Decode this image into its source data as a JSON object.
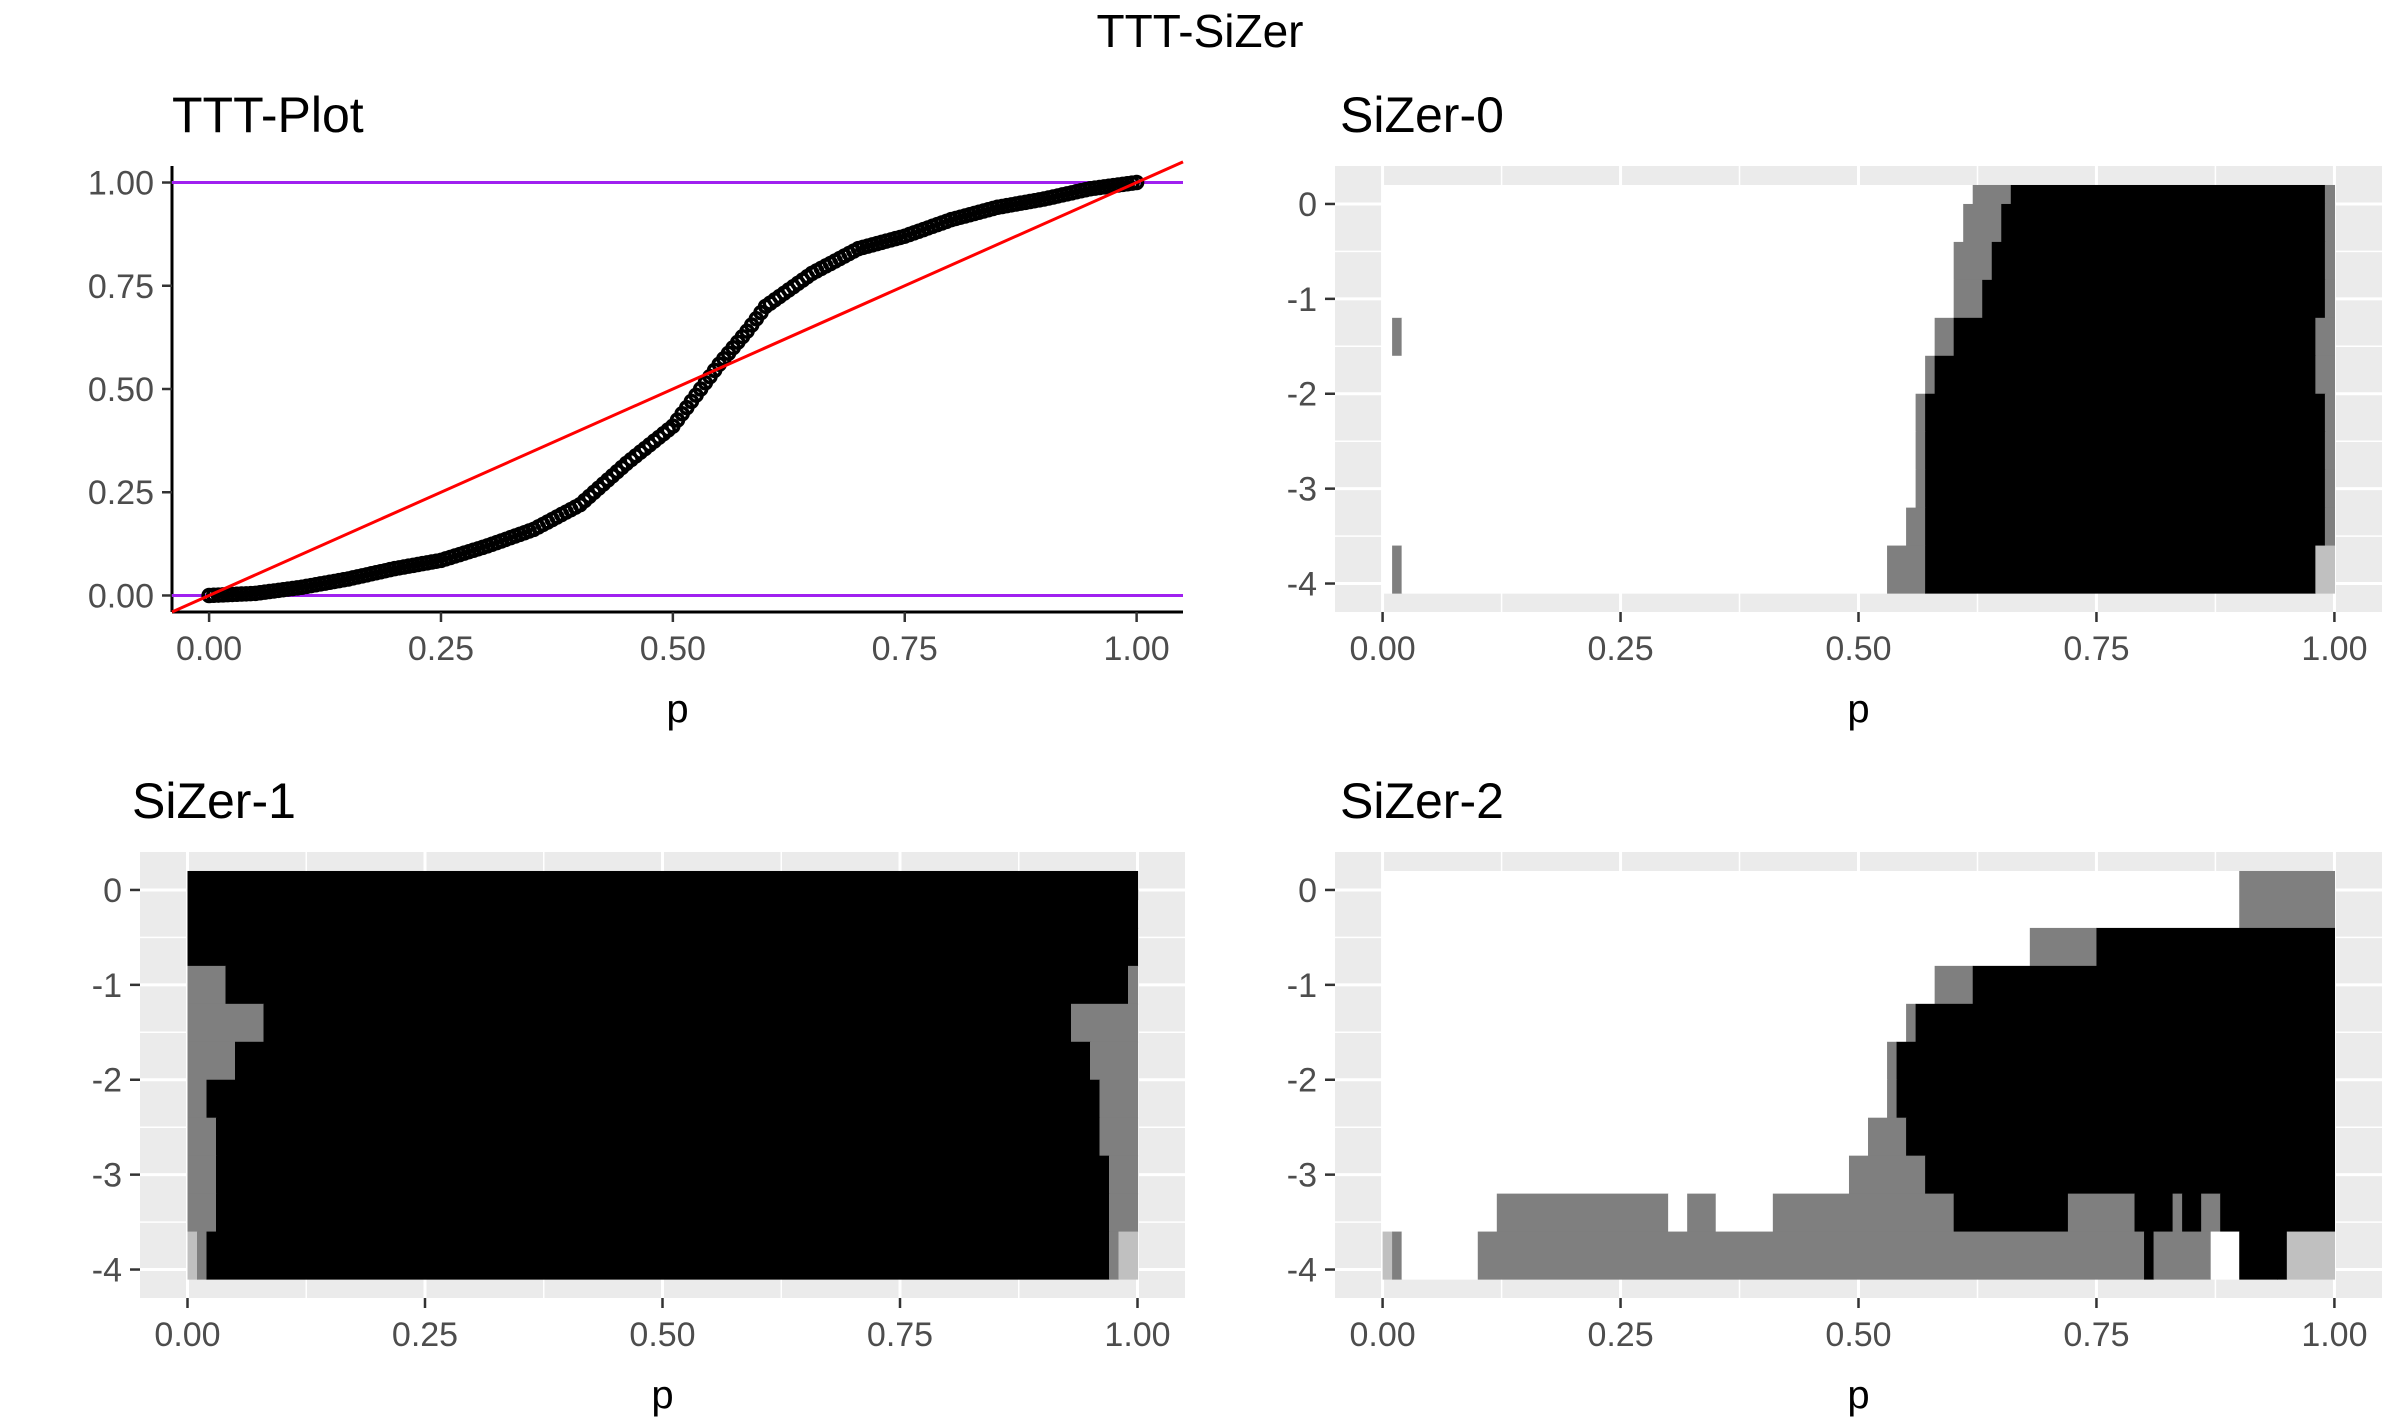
{
  "figure_title": "TTT-SiZer",
  "colors": {
    "panel_bg": "#ebebeb",
    "grid": "#ffffff",
    "ttt_points": "#000000",
    "ttt_diagonal": "#ff0000",
    "ttt_bounds": "#a020f0",
    "sizer_black": "#000000",
    "sizer_dark_gray": "#7f7f7f",
    "sizer_light_gray": "#c0c0c0",
    "sizer_white": "#ffffff"
  },
  "chart_data": [
    {
      "id": "ttt",
      "type": "scatter",
      "title": "TTT-Plot",
      "xlabel": "p",
      "ylabel": "",
      "xlim": [
        -0.04,
        1.05
      ],
      "ylim": [
        -0.04,
        1.04
      ],
      "xticks": [
        "0.00",
        "0.25",
        "0.50",
        "0.75",
        "1.00"
      ],
      "yticks": [
        "0.00",
        "0.25",
        "0.50",
        "0.75",
        "1.00"
      ],
      "grid": false,
      "curve_anchors": {
        "x": [
          0.0,
          0.05,
          0.1,
          0.15,
          0.2,
          0.25,
          0.3,
          0.35,
          0.4,
          0.43,
          0.45,
          0.5,
          0.53,
          0.55,
          0.58,
          0.6,
          0.65,
          0.7,
          0.75,
          0.8,
          0.85,
          0.9,
          0.95,
          1.0
        ],
        "y": [
          0.0,
          0.005,
          0.02,
          0.04,
          0.065,
          0.085,
          0.12,
          0.16,
          0.22,
          0.28,
          0.32,
          0.41,
          0.5,
          0.56,
          0.64,
          0.7,
          0.78,
          0.84,
          0.87,
          0.91,
          0.94,
          0.96,
          0.985,
          1.0
        ]
      },
      "lines": [
        {
          "name": "diagonal",
          "kind": "diagonal"
        },
        {
          "name": "upper",
          "kind": "hline",
          "y": 1.0
        },
        {
          "name": "lower",
          "kind": "hline",
          "y": 0.0
        }
      ]
    },
    {
      "id": "sizer0",
      "type": "heatmap",
      "title": "SiZer-0",
      "xlabel": "p",
      "ylabel": "",
      "xlim": [
        -0.05,
        1.05
      ],
      "ylim": [
        -4.3,
        0.4
      ],
      "xticks": [
        "0.00",
        "0.25",
        "0.50",
        "0.75",
        "1.00"
      ],
      "yticks": [
        "0",
        "-1",
        "-2",
        "-3",
        "-4"
      ],
      "grid": true,
      "rows_top_to_bottom": [
        {
          "y": 0.1,
          "segments": [
            [
              0.0,
              0.62,
              "W"
            ],
            [
              0.62,
              0.66,
              "G"
            ],
            [
              0.66,
              0.99,
              "B"
            ],
            [
              0.99,
              1.0,
              "G"
            ]
          ]
        },
        {
          "y": -0.2,
          "segments": [
            [
              0.0,
              0.61,
              "W"
            ],
            [
              0.61,
              0.65,
              "G"
            ],
            [
              0.65,
              0.99,
              "B"
            ],
            [
              0.99,
              1.0,
              "G"
            ]
          ]
        },
        {
          "y": -0.6,
          "segments": [
            [
              0.0,
              0.6,
              "W"
            ],
            [
              0.6,
              0.64,
              "G"
            ],
            [
              0.64,
              0.99,
              "B"
            ],
            [
              0.99,
              1.0,
              "G"
            ]
          ]
        },
        {
          "y": -1.0,
          "segments": [
            [
              0.0,
              0.6,
              "W"
            ],
            [
              0.6,
              0.63,
              "G"
            ],
            [
              0.63,
              0.99,
              "B"
            ],
            [
              0.99,
              1.0,
              "G"
            ]
          ]
        },
        {
          "y": -1.4,
          "segments": [
            [
              0.0,
              0.01,
              "W"
            ],
            [
              0.01,
              0.02,
              "G"
            ],
            [
              0.02,
              0.58,
              "W"
            ],
            [
              0.58,
              0.6,
              "G"
            ],
            [
              0.6,
              0.98,
              "B"
            ],
            [
              0.98,
              1.0,
              "G"
            ]
          ]
        },
        {
          "y": -1.8,
          "segments": [
            [
              0.0,
              0.57,
              "W"
            ],
            [
              0.57,
              0.58,
              "G"
            ],
            [
              0.58,
              0.98,
              "B"
            ],
            [
              0.98,
              1.0,
              "G"
            ]
          ]
        },
        {
          "y": -2.2,
          "segments": [
            [
              0.0,
              0.56,
              "W"
            ],
            [
              0.56,
              0.57,
              "G"
            ],
            [
              0.57,
              0.99,
              "B"
            ],
            [
              0.99,
              1.0,
              "G"
            ]
          ]
        },
        {
          "y": -2.6,
          "segments": [
            [
              0.0,
              0.56,
              "W"
            ],
            [
              0.56,
              0.57,
              "G"
            ],
            [
              0.57,
              0.99,
              "B"
            ],
            [
              0.99,
              1.0,
              "G"
            ]
          ]
        },
        {
          "y": -3.0,
          "segments": [
            [
              0.0,
              0.56,
              "W"
            ],
            [
              0.56,
              0.57,
              "G"
            ],
            [
              0.57,
              0.99,
              "B"
            ],
            [
              0.99,
              1.0,
              "G"
            ]
          ]
        },
        {
          "y": -3.4,
          "segments": [
            [
              0.0,
              0.55,
              "W"
            ],
            [
              0.55,
              0.57,
              "G"
            ],
            [
              0.57,
              0.99,
              "B"
            ],
            [
              0.99,
              1.0,
              "G"
            ]
          ]
        },
        {
          "y": -3.8,
          "segments": [
            [
              0.0,
              0.01,
              "W"
            ],
            [
              0.01,
              0.02,
              "G"
            ],
            [
              0.02,
              0.53,
              "W"
            ],
            [
              0.53,
              0.57,
              "G"
            ],
            [
              0.57,
              0.98,
              "B"
            ],
            [
              0.98,
              1.0,
              "L"
            ]
          ]
        }
      ]
    },
    {
      "id": "sizer1",
      "type": "heatmap",
      "title": "SiZer-1",
      "xlabel": "p",
      "ylabel": "",
      "xlim": [
        -0.05,
        1.05
      ],
      "ylim": [
        -4.3,
        0.4
      ],
      "xticks": [
        "0.00",
        "0.25",
        "0.50",
        "0.75",
        "1.00"
      ],
      "yticks": [
        "0",
        "-1",
        "-2",
        "-3",
        "-4"
      ],
      "grid": true,
      "rows_top_to_bottom": [
        {
          "y": 0.1,
          "segments": [
            [
              0.0,
              1.0,
              "B"
            ]
          ]
        },
        {
          "y": -0.2,
          "segments": [
            [
              0.0,
              1.0,
              "B"
            ]
          ]
        },
        {
          "y": -0.6,
          "segments": [
            [
              0.0,
              1.0,
              "B"
            ]
          ]
        },
        {
          "y": -1.0,
          "segments": [
            [
              0.0,
              0.04,
              "G"
            ],
            [
              0.04,
              0.99,
              "B"
            ],
            [
              0.99,
              1.0,
              "G"
            ]
          ]
        },
        {
          "y": -1.4,
          "segments": [
            [
              0.0,
              0.08,
              "G"
            ],
            [
              0.08,
              0.93,
              "B"
            ],
            [
              0.93,
              1.0,
              "G"
            ]
          ]
        },
        {
          "y": -1.8,
          "segments": [
            [
              0.0,
              0.05,
              "G"
            ],
            [
              0.05,
              0.95,
              "B"
            ],
            [
              0.95,
              1.0,
              "G"
            ]
          ]
        },
        {
          "y": -2.2,
          "segments": [
            [
              0.0,
              0.02,
              "G"
            ],
            [
              0.02,
              0.96,
              "B"
            ],
            [
              0.96,
              1.0,
              "G"
            ]
          ]
        },
        {
          "y": -2.6,
          "segments": [
            [
              0.0,
              0.03,
              "G"
            ],
            [
              0.03,
              0.96,
              "B"
            ],
            [
              0.96,
              1.0,
              "G"
            ]
          ]
        },
        {
          "y": -3.0,
          "segments": [
            [
              0.0,
              0.03,
              "G"
            ],
            [
              0.03,
              0.97,
              "B"
            ],
            [
              0.97,
              1.0,
              "G"
            ]
          ]
        },
        {
          "y": -3.4,
          "segments": [
            [
              0.0,
              0.03,
              "G"
            ],
            [
              0.03,
              0.97,
              "B"
            ],
            [
              0.97,
              1.0,
              "G"
            ]
          ]
        },
        {
          "y": -3.8,
          "segments": [
            [
              0.0,
              0.01,
              "L"
            ],
            [
              0.01,
              0.02,
              "G"
            ],
            [
              0.02,
              0.97,
              "B"
            ],
            [
              0.97,
              0.98,
              "G"
            ],
            [
              0.98,
              1.0,
              "L"
            ]
          ]
        }
      ]
    },
    {
      "id": "sizer2",
      "type": "heatmap",
      "title": "SiZer-2",
      "xlabel": "p",
      "ylabel": "",
      "xlim": [
        -0.05,
        1.05
      ],
      "ylim": [
        -4.3,
        0.4
      ],
      "xticks": [
        "0.00",
        "0.25",
        "0.50",
        "0.75",
        "1.00"
      ],
      "yticks": [
        "0",
        "-1",
        "-2",
        "-3",
        "-4"
      ],
      "grid": true,
      "rows_top_to_bottom": [
        {
          "y": 0.1,
          "segments": [
            [
              0.0,
              0.9,
              "W"
            ],
            [
              0.9,
              1.0,
              "G"
            ]
          ]
        },
        {
          "y": -0.2,
          "segments": [
            [
              0.0,
              0.9,
              "W"
            ],
            [
              0.9,
              1.0,
              "G"
            ]
          ]
        },
        {
          "y": -0.6,
          "segments": [
            [
              0.0,
              0.68,
              "W"
            ],
            [
              0.68,
              0.75,
              "G"
            ],
            [
              0.75,
              1.0,
              "B"
            ]
          ]
        },
        {
          "y": -1.0,
          "segments": [
            [
              0.0,
              0.58,
              "W"
            ],
            [
              0.58,
              0.62,
              "G"
            ],
            [
              0.62,
              1.0,
              "B"
            ]
          ]
        },
        {
          "y": -1.4,
          "segments": [
            [
              0.0,
              0.55,
              "W"
            ],
            [
              0.55,
              0.56,
              "G"
            ],
            [
              0.56,
              1.0,
              "B"
            ]
          ]
        },
        {
          "y": -1.8,
          "segments": [
            [
              0.0,
              0.53,
              "W"
            ],
            [
              0.53,
              0.54,
              "G"
            ],
            [
              0.54,
              1.0,
              "B"
            ]
          ]
        },
        {
          "y": -2.2,
          "segments": [
            [
              0.0,
              0.53,
              "W"
            ],
            [
              0.53,
              0.54,
              "G"
            ],
            [
              0.54,
              1.0,
              "B"
            ]
          ]
        },
        {
          "y": -2.6,
          "segments": [
            [
              0.0,
              0.51,
              "W"
            ],
            [
              0.51,
              0.55,
              "G"
            ],
            [
              0.55,
              1.0,
              "B"
            ]
          ]
        },
        {
          "y": -3.0,
          "segments": [
            [
              0.0,
              0.49,
              "W"
            ],
            [
              0.49,
              0.57,
              "G"
            ],
            [
              0.57,
              1.0,
              "B"
            ]
          ]
        },
        {
          "y": -3.4,
          "segments": [
            [
              0.0,
              0.12,
              "W"
            ],
            [
              0.12,
              0.3,
              "G"
            ],
            [
              0.3,
              0.32,
              "W"
            ],
            [
              0.32,
              0.35,
              "G"
            ],
            [
              0.35,
              0.41,
              "W"
            ],
            [
              0.41,
              0.6,
              "G"
            ],
            [
              0.6,
              0.72,
              "B"
            ],
            [
              0.72,
              0.79,
              "G"
            ],
            [
              0.79,
              0.83,
              "B"
            ],
            [
              0.83,
              0.84,
              "G"
            ],
            [
              0.84,
              0.86,
              "B"
            ],
            [
              0.86,
              0.88,
              "G"
            ],
            [
              0.88,
              1.0,
              "B"
            ]
          ]
        },
        {
          "y": -3.8,
          "segments": [
            [
              0.0,
              0.01,
              "L"
            ],
            [
              0.01,
              0.02,
              "G"
            ],
            [
              0.02,
              0.1,
              "W"
            ],
            [
              0.1,
              0.8,
              "G"
            ],
            [
              0.8,
              0.81,
              "B"
            ],
            [
              0.81,
              0.87,
              "G"
            ],
            [
              0.87,
              0.9,
              "W"
            ],
            [
              0.9,
              0.94,
              "B"
            ],
            [
              0.94,
              0.95,
              "B"
            ],
            [
              0.95,
              1.0,
              "L"
            ]
          ]
        }
      ]
    }
  ]
}
